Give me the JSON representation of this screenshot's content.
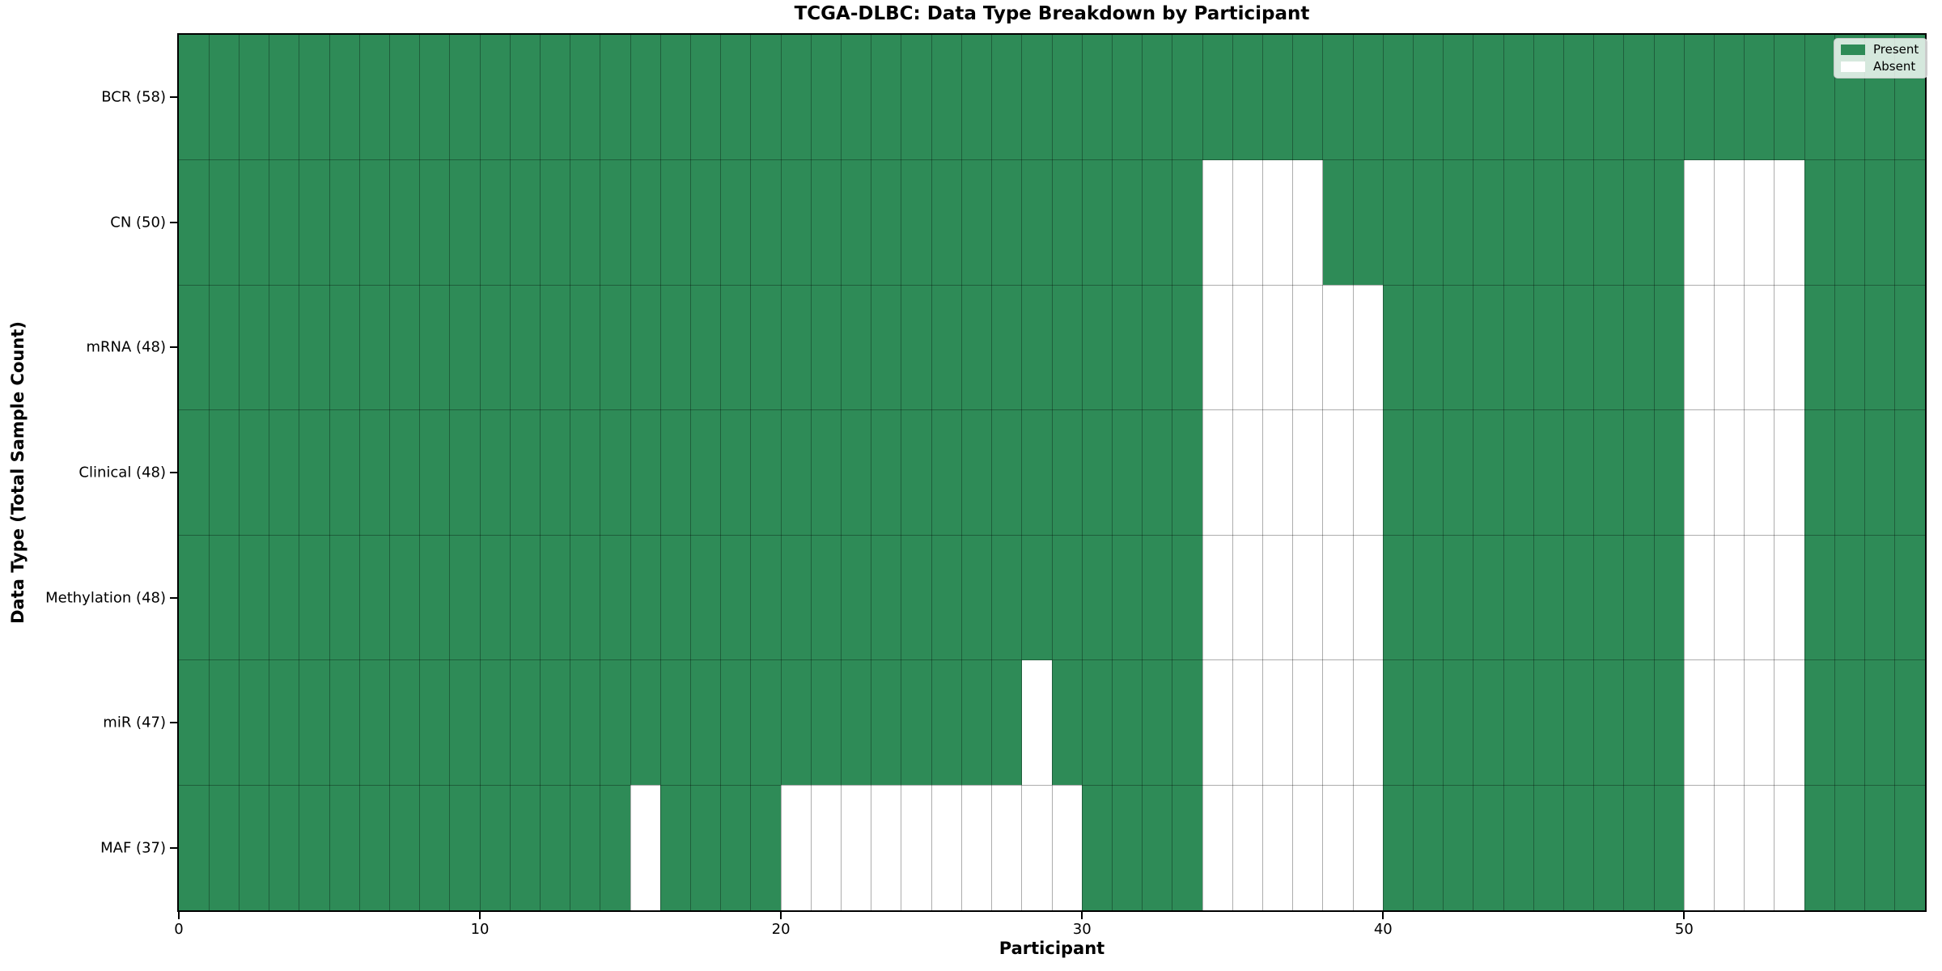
{
  "chart_data": {
    "type": "heatmap",
    "title": "TCGA-DLBC: Data Type Breakdown by Participant",
    "xlabel": "Participant",
    "ylabel": "Data Type (Total Sample Count)",
    "n_participants": 58,
    "x_range": [
      0,
      58
    ],
    "x_ticks": [
      0,
      10,
      20,
      30,
      40,
      50
    ],
    "grid": true,
    "legend_position": "upper right",
    "colors": {
      "present": "#2e8b57",
      "absent": "#ffffff",
      "grid": "rgba(0,0,0,0.32)",
      "spine": "#000000"
    },
    "legend": [
      {
        "label": "Present",
        "color": "#2e8b57"
      },
      {
        "label": "Absent",
        "color": "#ffffff"
      }
    ],
    "rows": [
      {
        "label": "BCR (58)",
        "data_type": "BCR",
        "present_count": 58,
        "absent_participants": []
      },
      {
        "label": "CN (50)",
        "data_type": "CN",
        "present_count": 50,
        "absent_participants": [
          34,
          35,
          36,
          37,
          50,
          51,
          52,
          53
        ]
      },
      {
        "label": "mRNA (48)",
        "data_type": "mRNA",
        "present_count": 48,
        "absent_participants": [
          34,
          35,
          36,
          37,
          38,
          39,
          50,
          51,
          52,
          53
        ]
      },
      {
        "label": "Clinical (48)",
        "data_type": "Clinical",
        "present_count": 48,
        "absent_participants": [
          34,
          35,
          36,
          37,
          38,
          39,
          50,
          51,
          52,
          53
        ]
      },
      {
        "label": "Methylation (48)",
        "data_type": "Methylation",
        "present_count": 48,
        "absent_participants": [
          34,
          35,
          36,
          37,
          38,
          39,
          50,
          51,
          52,
          53
        ]
      },
      {
        "label": "miR (47)",
        "data_type": "miR",
        "present_count": 47,
        "absent_participants": [
          28,
          34,
          35,
          36,
          37,
          38,
          39,
          50,
          51,
          52,
          53
        ]
      },
      {
        "label": "MAF (37)",
        "data_type": "MAF",
        "present_count": 37,
        "absent_participants": [
          15,
          20,
          21,
          22,
          23,
          24,
          25,
          26,
          27,
          28,
          29,
          34,
          35,
          36,
          37,
          38,
          39,
          50,
          51,
          52,
          53
        ]
      }
    ]
  }
}
